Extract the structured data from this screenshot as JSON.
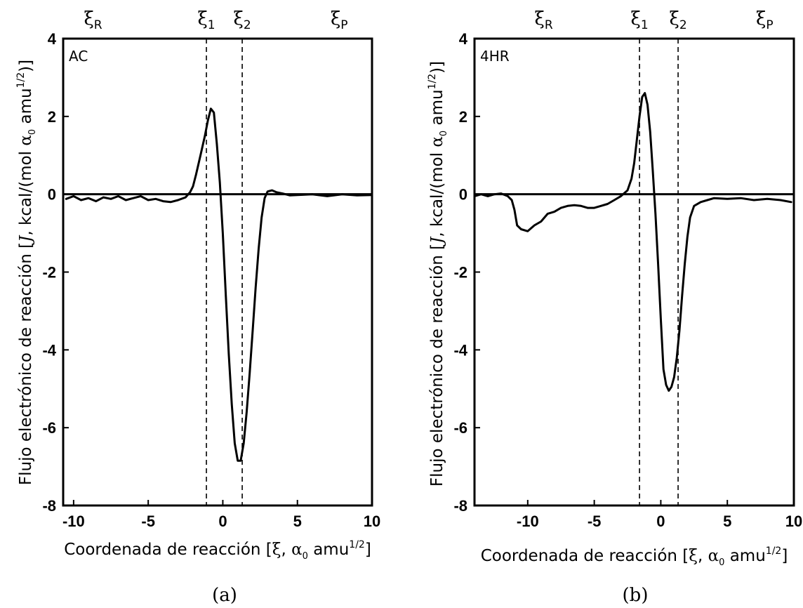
{
  "chart_data": [
    {
      "type": "line",
      "panel_label": "AC",
      "caption": "(a)",
      "xlabel_main": "Coordenada de reacción [",
      "xlabel_xi": "ξ",
      "xlabel_mid": ", ",
      "xlabel_alpha": "α",
      "xlabel_alpha_sub": "0",
      "xlabel_unit": " amu",
      "xlabel_sup": "1/2",
      "xlabel_close": "]",
      "ylabel_pre": "Flujo electrónico de reacción [",
      "ylabel_J": "J",
      "ylabel_mid": ", kcal/(mol ",
      "ylabel_alpha": "α",
      "ylabel_alpha_sub": "0",
      "ylabel_unit": " amu",
      "ylabel_sup": "1/2",
      "ylabel_close": ")]",
      "xlim": [
        -10.7,
        10
      ],
      "ylim": [
        -8,
        4
      ],
      "xticks": [
        -10,
        -5,
        0,
        5,
        10
      ],
      "yticks": [
        4,
        2,
        0,
        -2,
        -4,
        -6,
        -8
      ],
      "markers": [
        {
          "symbol": "ξ",
          "sub": "R",
          "x": -8.7
        },
        {
          "symbol": "ξ",
          "sub": "1",
          "x": -1.1,
          "dashed": true
        },
        {
          "symbol": "ξ",
          "sub": "2",
          "x": 1.3,
          "dashed": true
        },
        {
          "symbol": "ξ",
          "sub": "P",
          "x": 7.8
        }
      ],
      "series": [
        {
          "x": [
            -10.5,
            -10.0,
            -9.5,
            -9.0,
            -8.5,
            -8.0,
            -7.5,
            -7.0,
            -6.5,
            -6.0,
            -5.5,
            -5.0,
            -4.5,
            -4.0,
            -3.5,
            -3.0,
            -2.5,
            -2.2,
            -2.0,
            -1.8,
            -1.5,
            -1.2,
            -1.0,
            -0.8,
            -0.6,
            -0.4,
            -0.2,
            0.0,
            0.2,
            0.4,
            0.6,
            0.8,
            1.0,
            1.2,
            1.4,
            1.6,
            1.8,
            2.0,
            2.2,
            2.4,
            2.6,
            2.8,
            3.0,
            3.3,
            3.6,
            4.0,
            4.5,
            5.0,
            6.0,
            7.0,
            8.0,
            9.0,
            10.0
          ],
          "y": [
            -0.12,
            -0.05,
            -0.15,
            -0.1,
            -0.18,
            -0.08,
            -0.12,
            -0.05,
            -0.15,
            -0.1,
            -0.05,
            -0.15,
            -0.12,
            -0.18,
            -0.2,
            -0.15,
            -0.08,
            0.05,
            0.2,
            0.5,
            1.0,
            1.5,
            1.9,
            2.2,
            2.1,
            1.3,
            0.3,
            -1.0,
            -2.6,
            -4.1,
            -5.4,
            -6.4,
            -6.85,
            -6.85,
            -6.4,
            -5.6,
            -4.6,
            -3.5,
            -2.4,
            -1.4,
            -0.6,
            -0.1,
            0.07,
            0.1,
            0.05,
            0.02,
            -0.03,
            -0.02,
            0.0,
            -0.05,
            0.0,
            -0.03,
            -0.02
          ]
        }
      ]
    },
    {
      "type": "line",
      "panel_label": "4HR",
      "caption": "(b)",
      "xlabel_main": "Coordenada de reacción [",
      "xlabel_xi": "ξ",
      "xlabel_mid": ", ",
      "xlabel_alpha": "α",
      "xlabel_alpha_sub": "0",
      "xlabel_unit": " amu",
      "xlabel_sup": "1/2",
      "xlabel_close": "]",
      "ylabel_pre": "Flujo electrónico de reacción [",
      "ylabel_J": "J",
      "ylabel_mid": ", kcal/(mol ",
      "ylabel_alpha": "α",
      "ylabel_alpha_sub": "0",
      "ylabel_unit": " amu",
      "ylabel_sup": "1/2",
      "ylabel_close": ")]",
      "xlim": [
        -14,
        10
      ],
      "ylim": [
        -8,
        4
      ],
      "xticks": [
        -10,
        -5,
        0,
        5,
        10
      ],
      "yticks": [
        4,
        2,
        0,
        -2,
        -4,
        -6,
        -8
      ],
      "markers": [
        {
          "symbol": "ξ",
          "sub": "R",
          "x": -8.8
        },
        {
          "symbol": "ξ",
          "sub": "1",
          "x": -1.6,
          "dashed": true
        },
        {
          "symbol": "ξ",
          "sub": "2",
          "x": 1.3,
          "dashed": true
        },
        {
          "symbol": "ξ",
          "sub": "P",
          "x": 7.8
        }
      ],
      "series": [
        {
          "x": [
            -14.0,
            -13.5,
            -13.0,
            -12.5,
            -12.0,
            -11.5,
            -11.2,
            -11.0,
            -10.8,
            -10.5,
            -10.0,
            -9.5,
            -9.0,
            -8.5,
            -8.0,
            -7.5,
            -7.0,
            -6.5,
            -6.0,
            -5.5,
            -5.0,
            -4.5,
            -4.0,
            -3.5,
            -3.0,
            -2.5,
            -2.2,
            -2.0,
            -1.8,
            -1.6,
            -1.4,
            -1.2,
            -1.0,
            -0.8,
            -0.6,
            -0.4,
            -0.2,
            0.0,
            0.2,
            0.4,
            0.6,
            0.8,
            1.0,
            1.2,
            1.4,
            1.6,
            1.8,
            2.0,
            2.2,
            2.5,
            3.0,
            3.5,
            4.0,
            5.0,
            6.0,
            7.0,
            8.0,
            9.0,
            9.8
          ],
          "y": [
            -0.05,
            0.0,
            -0.05,
            0.0,
            0.02,
            -0.05,
            -0.15,
            -0.4,
            -0.8,
            -0.9,
            -0.95,
            -0.8,
            -0.7,
            -0.5,
            -0.45,
            -0.35,
            -0.3,
            -0.28,
            -0.3,
            -0.35,
            -0.35,
            -0.3,
            -0.25,
            -0.15,
            -0.05,
            0.1,
            0.4,
            0.8,
            1.4,
            2.0,
            2.5,
            2.6,
            2.3,
            1.6,
            0.6,
            -0.5,
            -1.8,
            -3.2,
            -4.5,
            -4.9,
            -5.05,
            -4.95,
            -4.7,
            -4.2,
            -3.5,
            -2.6,
            -1.8,
            -1.1,
            -0.6,
            -0.3,
            -0.2,
            -0.15,
            -0.1,
            -0.12,
            -0.1,
            -0.15,
            -0.12,
            -0.15,
            -0.2
          ]
        }
      ]
    }
  ]
}
